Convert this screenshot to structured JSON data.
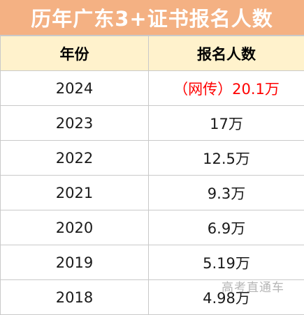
{
  "title": "历年广东3+证书报名人数",
  "columns": [
    "年份",
    "报名人数"
  ],
  "rows": [
    {
      "year": "2024",
      "count": "（网传）20.1万",
      "highlight": true
    },
    {
      "year": "2023",
      "count": "17万",
      "highlight": false
    },
    {
      "year": "2022",
      "count": "12.5万",
      "highlight": false
    },
    {
      "year": "2021",
      "count": "9.3万",
      "highlight": false
    },
    {
      "year": "2020",
      "count": "6.9万",
      "highlight": false
    },
    {
      "year": "2019",
      "count": "5.19万",
      "highlight": false
    },
    {
      "year": "2018",
      "count": "4.98万",
      "highlight": false
    }
  ],
  "watermark": "高考直通车",
  "colors": {
    "title_background": "#f4b183",
    "title_text": "#ffffff",
    "header_background": "#fff2cc",
    "highlight_text": "#ff0000",
    "grid": "#c9c9c9"
  }
}
